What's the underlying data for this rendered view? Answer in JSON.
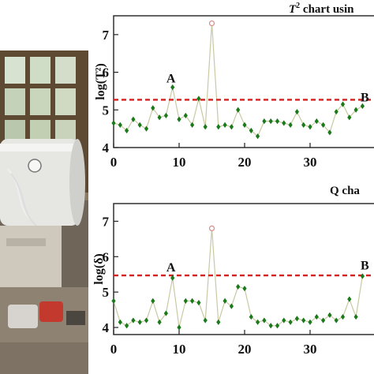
{
  "chart_data": [
    {
      "type": "line",
      "title_prefix": "T",
      "title_sup": "2",
      "title_suffix": " chart usin",
      "ylabel": "log(T²)",
      "xlabel": "",
      "xlim": [
        0,
        40
      ],
      "ylim": [
        4,
        7.5
      ],
      "xticks": [
        "0",
        "10",
        "20",
        "30"
      ],
      "yticks": [
        "4",
        "5",
        "6",
        "7"
      ],
      "threshold": 5.27,
      "threshold_color": "#d42020",
      "line_color": "#c9c9a4",
      "point_color": "#1a7a1a",
      "outlier_color": "#d98a8a",
      "annotations": [
        {
          "text": "A",
          "x": 9,
          "y": 5.6
        },
        {
          "text": "B",
          "x": 38.6,
          "y": 5.1
        }
      ],
      "x": [
        0,
        1,
        2,
        3,
        4,
        5,
        6,
        7,
        8,
        9,
        10,
        11,
        12,
        13,
        14,
        15,
        16,
        17,
        18,
        19,
        20,
        21,
        22,
        23,
        24,
        25,
        26,
        27,
        28,
        29,
        30,
        31,
        32,
        33,
        34,
        35,
        36,
        37,
        38
      ],
      "y": [
        4.65,
        4.6,
        4.45,
        4.75,
        4.6,
        4.5,
        5.05,
        4.8,
        4.85,
        5.6,
        4.75,
        4.85,
        4.6,
        5.3,
        4.55,
        7.3,
        4.55,
        4.6,
        4.55,
        5.0,
        4.6,
        4.45,
        4.3,
        4.7,
        4.7,
        4.7,
        4.65,
        4.6,
        4.95,
        4.6,
        4.55,
        4.7,
        4.6,
        4.4,
        4.95,
        5.15,
        4.8,
        5.0,
        5.1
      ],
      "outlier_indices": [
        15
      ]
    },
    {
      "type": "line",
      "title_prefix": "Q cha",
      "title_sup": "",
      "title_suffix": "",
      "ylabel": "log(δ)",
      "xlabel": "",
      "xlim": [
        0,
        40
      ],
      "ylim": [
        3.8,
        7.5
      ],
      "xticks": [
        "0",
        "10",
        "20",
        "30"
      ],
      "yticks": [
        "4",
        "5",
        "6",
        "7"
      ],
      "threshold": 5.47,
      "threshold_color": "#d42020",
      "line_color": "#c9c9a4",
      "point_color": "#1a7a1a",
      "outlier_color": "#d98a8a",
      "annotations": [
        {
          "text": "A",
          "x": 9,
          "y": 5.45
        },
        {
          "text": "B",
          "x": 38.6,
          "y": 5.5
        }
      ],
      "x": [
        0,
        1,
        2,
        3,
        4,
        5,
        6,
        7,
        8,
        9,
        10,
        11,
        12,
        13,
        14,
        15,
        16,
        17,
        18,
        19,
        20,
        21,
        22,
        23,
        24,
        25,
        26,
        27,
        28,
        29,
        30,
        31,
        32,
        33,
        34,
        35,
        36,
        37,
        38
      ],
      "y": [
        4.75,
        4.15,
        4.05,
        4.2,
        4.15,
        4.2,
        4.75,
        4.15,
        4.4,
        5.4,
        4.0,
        4.75,
        4.75,
        4.7,
        4.2,
        6.8,
        4.15,
        4.75,
        4.6,
        5.15,
        5.1,
        4.3,
        4.15,
        4.2,
        4.05,
        4.05,
        4.2,
        4.15,
        4.25,
        4.2,
        4.15,
        4.3,
        4.2,
        4.35,
        4.2,
        4.3,
        4.8,
        4.3,
        5.45
      ],
      "outlier_indices": [
        15
      ]
    }
  ]
}
